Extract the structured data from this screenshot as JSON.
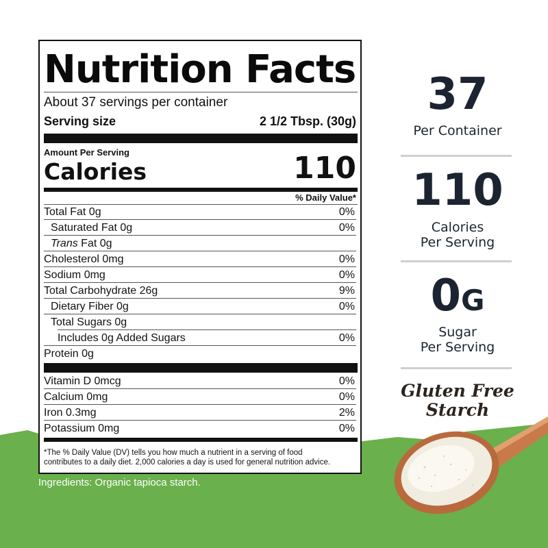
{
  "label": {
    "title": "Nutrition Facts",
    "servings_per_container": "About 37 servings per container",
    "serving_size_label": "Serving size",
    "serving_size_value": "2 1/2 Tbsp. (30g)",
    "amount_per_serving": "Amount Per Serving",
    "calories_label": "Calories",
    "calories_value": "110",
    "daily_value_header": "% Daily Value*",
    "nutrients": [
      {
        "name": "Total Fat 0g",
        "dv": "0%"
      },
      {
        "name": "Saturated Fat 0g",
        "dv": "0%"
      },
      {
        "name_italic": "Trans",
        "name_rest": " Fat 0g",
        "dv": ""
      },
      {
        "name": "Cholesterol 0mg",
        "dv": "0%"
      },
      {
        "name": "Sodium 0mg",
        "dv": "0%"
      },
      {
        "name": "Total Carbohydrate 26g",
        "dv": "9%"
      },
      {
        "name": "Dietary Fiber 0g",
        "dv": "0%"
      },
      {
        "name": "Total Sugars 0g",
        "dv": ""
      },
      {
        "name": "Includes 0g Added Sugars",
        "dv": "0%"
      },
      {
        "name": "Protein 0g",
        "dv": ""
      }
    ],
    "vitamins": [
      {
        "name": "Vitamin D 0mcg",
        "dv": "0%"
      },
      {
        "name": "Calcium 0mg",
        "dv": "0%"
      },
      {
        "name": "Iron 0.3mg",
        "dv": "2%"
      },
      {
        "name": "Potassium 0mg",
        "dv": "0%"
      }
    ],
    "footnote_line1": "*The % Daily Value (DV) tells you how much a nutrient in a serving of food",
    "footnote_line2": "contributes to a daily diet. 2,000 calories a day is used for general nutrition advice."
  },
  "ingredients": "Ingredients: Organic tapioca starch.",
  "stats": [
    {
      "value": "37",
      "label_line1": "Per Container",
      "label_line2": ""
    },
    {
      "value": "110",
      "label_line1": "Calories",
      "label_line2": "Per Serving"
    },
    {
      "value": "0",
      "unit": "G",
      "label_line1": "Sugar",
      "label_line2": "Per Serving"
    }
  ],
  "badge": {
    "line1": "Gluten Free",
    "line2": "Starch"
  },
  "colors": {
    "green": "#6ab04c",
    "dark_text": "#1b2430",
    "spoon": "#c97a4a",
    "powder": "#f1ece0"
  }
}
